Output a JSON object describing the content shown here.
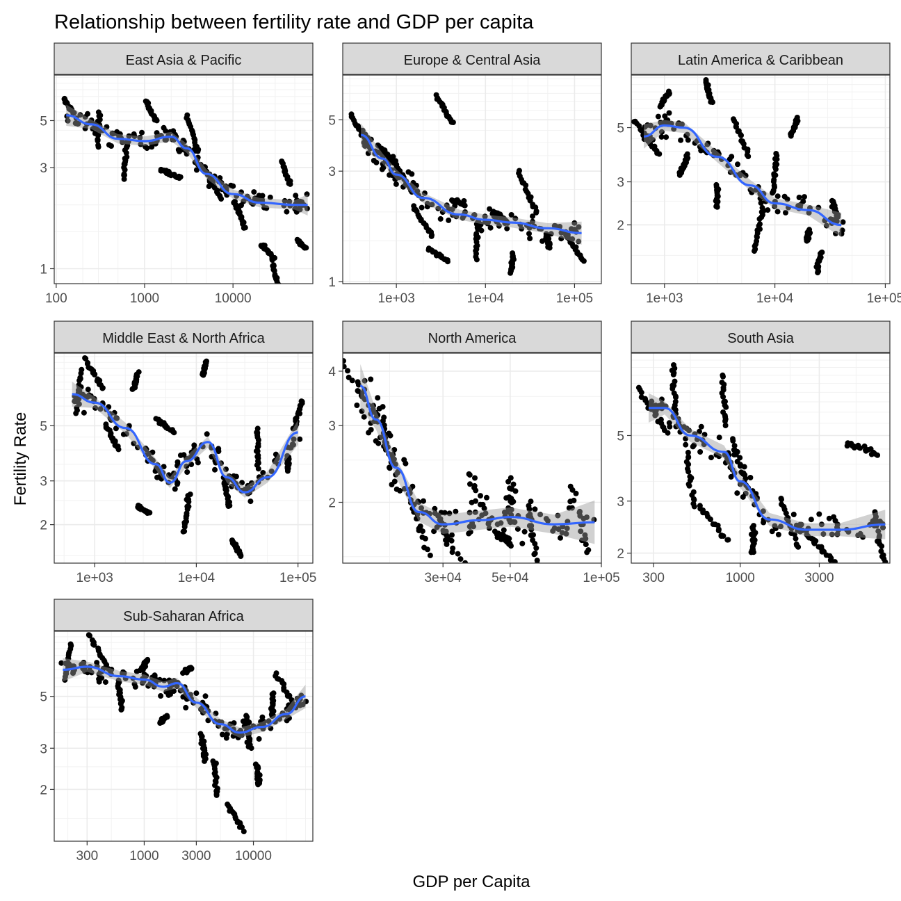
{
  "chart_data": {
    "type": "scatter",
    "title": "Relationship between fertility rate and GDP per capita",
    "xlabel": "GDP per Capita",
    "ylabel": "Fertility Rate",
    "x_scale": "log10",
    "y_scale": "log10",
    "smooth_color": "#3366FF",
    "point_color": "#000000",
    "ribbon_color": "#999999",
    "strip_fill": "#D9D9D9",
    "grid": true,
    "facets": [
      {
        "name": "East Asia & Pacific",
        "xlim": [
          95,
          80000
        ],
        "ylim": [
          0.85,
          8.2
        ],
        "xticks": [
          {
            "v": 100,
            "label": "100"
          },
          {
            "v": 1000,
            "label": "1000"
          },
          {
            "v": 10000,
            "label": "10000"
          }
        ],
        "yticks": [
          {
            "v": 1,
            "label": "1"
          },
          {
            "v": 3,
            "label": "3"
          },
          {
            "v": 5,
            "label": "5"
          }
        ],
        "smooth": [
          [
            130,
            5.3
          ],
          [
            250,
            4.8
          ],
          [
            500,
            4.1
          ],
          [
            1000,
            4.0
          ],
          [
            2000,
            4.2
          ],
          [
            3000,
            3.7
          ],
          [
            5000,
            2.8
          ],
          [
            10000,
            2.25
          ],
          [
            20000,
            2.05
          ],
          [
            50000,
            2.0
          ],
          [
            70000,
            2.0
          ]
        ],
        "clusters": [
          [
            140,
            5.8
          ],
          [
            300,
            4.5
          ],
          [
            600,
            3.2
          ],
          [
            1200,
            5.5
          ],
          [
            2000,
            2.8
          ],
          [
            3500,
            4.3
          ],
          [
            6000,
            2.5
          ],
          [
            12000,
            1.8
          ],
          [
            25000,
            1.2
          ],
          [
            40000,
            2.8
          ],
          [
            60000,
            1.3
          ],
          [
            30000,
            0.95
          ]
        ]
      },
      {
        "name": "Europe & Central Asia",
        "xlim": [
          250,
          200000
        ],
        "ylim": [
          0.98,
          7.8
        ],
        "xticks": [
          {
            "v": 1000,
            "label": "1e+03"
          },
          {
            "v": 10000,
            "label": "1e+04"
          },
          {
            "v": 100000,
            "label": "1e+05"
          }
        ],
        "yticks": [
          {
            "v": 1,
            "label": "1"
          },
          {
            "v": 3,
            "label": "3"
          },
          {
            "v": 5,
            "label": "5"
          }
        ],
        "smooth": [
          [
            400,
            4.3
          ],
          [
            700,
            3.4
          ],
          [
            1000,
            2.9
          ],
          [
            2000,
            2.3
          ],
          [
            5000,
            1.95
          ],
          [
            10000,
            1.85
          ],
          [
            20000,
            1.8
          ],
          [
            50000,
            1.7
          ],
          [
            120000,
            1.62
          ]
        ],
        "clusters": [
          [
            400,
            4.4
          ],
          [
            800,
            3.5
          ],
          [
            1200,
            2.8
          ],
          [
            2000,
            1.8
          ],
          [
            3000,
            1.3
          ],
          [
            5000,
            2.2
          ],
          [
            8000,
            1.5
          ],
          [
            15000,
            1.9
          ],
          [
            20000,
            1.2
          ],
          [
            30000,
            2.4
          ],
          [
            50000,
            1.5
          ],
          [
            100000,
            1.4
          ],
          [
            3500,
            5.5
          ]
        ]
      },
      {
        "name": "Latin America & Caribbean",
        "xlim": [
          500,
          110000
        ],
        "ylim": [
          1.15,
          8.2
        ],
        "xticks": [
          {
            "v": 1000,
            "label": "1e+03"
          },
          {
            "v": 10000,
            "label": "1e+04"
          },
          {
            "v": 100000,
            "label": "1e+05"
          }
        ],
        "yticks": [
          {
            "v": 2,
            "label": "2"
          },
          {
            "v": 3,
            "label": "3"
          },
          {
            "v": 5,
            "label": "5"
          }
        ],
        "smooth": [
          [
            650,
            4.6
          ],
          [
            1000,
            5.1
          ],
          [
            1500,
            5.0
          ],
          [
            3000,
            3.8
          ],
          [
            6000,
            2.9
          ],
          [
            10000,
            2.45
          ],
          [
            20000,
            2.3
          ],
          [
            40000,
            2.0
          ]
        ],
        "clusters": [
          [
            700,
            4.5
          ],
          [
            1000,
            6.5
          ],
          [
            1500,
            3.5
          ],
          [
            2500,
            7.0
          ],
          [
            3000,
            2.6
          ],
          [
            5000,
            4.5
          ],
          [
            7000,
            1.9
          ],
          [
            10000,
            3.2
          ],
          [
            15000,
            5.0
          ],
          [
            20000,
            1.8
          ],
          [
            25000,
            1.4
          ],
          [
            35000,
            2.3
          ]
        ]
      },
      {
        "name": "Middle East & North Africa",
        "xlim": [
          400,
          140000
        ],
        "ylim": [
          1.4,
          9.8
        ],
        "xticks": [
          {
            "v": 1000,
            "label": "1e+03"
          },
          {
            "v": 10000,
            "label": "1e+04"
          },
          {
            "v": 100000,
            "label": "1e+05"
          }
        ],
        "yticks": [
          {
            "v": 2,
            "label": "2"
          },
          {
            "v": 3,
            "label": "3"
          },
          {
            "v": 5,
            "label": "5"
          }
        ],
        "smooth": [
          [
            600,
            6.7
          ],
          [
            1000,
            6.2
          ],
          [
            2000,
            4.9
          ],
          [
            4000,
            3.5
          ],
          [
            5500,
            2.95
          ],
          [
            8000,
            3.6
          ],
          [
            13000,
            4.3
          ],
          [
            20000,
            3.1
          ],
          [
            30000,
            2.7
          ],
          [
            50000,
            3.1
          ],
          [
            100000,
            4.7
          ]
        ],
        "clusters": [
          [
            700,
            6.8
          ],
          [
            1000,
            8.0
          ],
          [
            1500,
            4.5
          ],
          [
            2500,
            7.5
          ],
          [
            3000,
            2.3
          ],
          [
            5000,
            5.0
          ],
          [
            8000,
            2.2
          ],
          [
            12000,
            8.5
          ],
          [
            20000,
            2.6
          ],
          [
            25000,
            1.6
          ],
          [
            40000,
            4.0
          ],
          [
            80000,
            3.5
          ],
          [
            100000,
            5.5
          ]
        ]
      },
      {
        "name": "North America",
        "xlim": [
          14000,
          100000
        ],
        "ylim": [
          1.45,
          4.4
        ],
        "xticks": [
          {
            "v": 30000,
            "label": "3e+04"
          },
          {
            "v": 50000,
            "label": "5e+04"
          },
          {
            "v": 100000,
            "label": "1e+05"
          }
        ],
        "yticks": [
          {
            "v": 2,
            "label": "2"
          },
          {
            "v": 3,
            "label": "3"
          },
          {
            "v": 4,
            "label": "4"
          }
        ],
        "smooth": [
          [
            16000,
            3.7
          ],
          [
            18000,
            3.1
          ],
          [
            21000,
            2.4
          ],
          [
            25000,
            1.9
          ],
          [
            30000,
            1.78
          ],
          [
            40000,
            1.82
          ],
          [
            50000,
            1.85
          ],
          [
            70000,
            1.78
          ],
          [
            95000,
            1.8
          ]
        ],
        "clusters": [
          [
            16000,
            3.6
          ],
          [
            20000,
            2.7
          ],
          [
            25000,
            1.8
          ],
          [
            32000,
            1.6
          ],
          [
            40000,
            2.0
          ],
          [
            50000,
            2.0
          ],
          [
            48000,
            1.65
          ],
          [
            85000,
            1.8
          ],
          [
            60000,
            1.6
          ]
        ]
      },
      {
        "name": "South Asia",
        "xlim": [
          220,
          8000
        ],
        "ylim": [
          1.85,
          9.5
        ],
        "xticks": [
          {
            "v": 300,
            "label": "300"
          },
          {
            "v": 1000,
            "label": "1000"
          },
          {
            "v": 3000,
            "label": "3000"
          }
        ],
        "yticks": [
          {
            "v": 2,
            "label": "2"
          },
          {
            "v": 3,
            "label": "3"
          },
          {
            "v": 5,
            "label": "5"
          }
        ],
        "smooth": [
          [
            280,
            6.2
          ],
          [
            350,
            6.2
          ],
          [
            500,
            5.0
          ],
          [
            800,
            4.4
          ],
          [
            1000,
            3.5
          ],
          [
            1500,
            2.6
          ],
          [
            2500,
            2.4
          ],
          [
            4000,
            2.4
          ],
          [
            7500,
            2.5
          ]
        ],
        "clusters": [
          [
            300,
            6.0
          ],
          [
            400,
            7.0
          ],
          [
            500,
            3.5
          ],
          [
            700,
            2.5
          ],
          [
            800,
            6.5
          ],
          [
            1000,
            4.0
          ],
          [
            1200,
            2.2
          ],
          [
            2000,
            2.5
          ],
          [
            3000,
            2.1
          ],
          [
            5500,
            4.5
          ],
          [
            7000,
            2.2
          ]
        ]
      },
      {
        "name": "Sub-Saharan Africa",
        "xlim": [
          150,
          35000
        ],
        "ylim": [
          1.2,
          9.5
        ],
        "xticks": [
          {
            "v": 300,
            "label": "300"
          },
          {
            "v": 1000,
            "label": "1000"
          },
          {
            "v": 3000,
            "label": "3000"
          },
          {
            "v": 10000,
            "label": "10000"
          }
        ],
        "yticks": [
          {
            "v": 2,
            "label": "2"
          },
          {
            "v": 3,
            "label": "3"
          },
          {
            "v": 5,
            "label": "5"
          }
        ],
        "smooth": [
          [
            180,
            6.5
          ],
          [
            300,
            6.7
          ],
          [
            600,
            6.1
          ],
          [
            1000,
            5.9
          ],
          [
            1500,
            5.5
          ],
          [
            2000,
            5.7
          ],
          [
            3000,
            4.7
          ],
          [
            5000,
            3.8
          ],
          [
            7500,
            3.5
          ],
          [
            12000,
            3.7
          ],
          [
            20000,
            4.2
          ],
          [
            30000,
            5.0
          ]
        ],
        "clusters": [
          [
            200,
            7.0
          ],
          [
            400,
            7.5
          ],
          [
            600,
            5.0
          ],
          [
            1000,
            6.8
          ],
          [
            1500,
            4.0
          ],
          [
            2500,
            6.5
          ],
          [
            3500,
            3.0
          ],
          [
            4500,
            2.2
          ],
          [
            7000,
            1.5
          ],
          [
            9000,
            3.5
          ],
          [
            11000,
            2.3
          ],
          [
            20000,
            5.2
          ],
          [
            15000,
            4.6
          ]
        ]
      }
    ]
  }
}
